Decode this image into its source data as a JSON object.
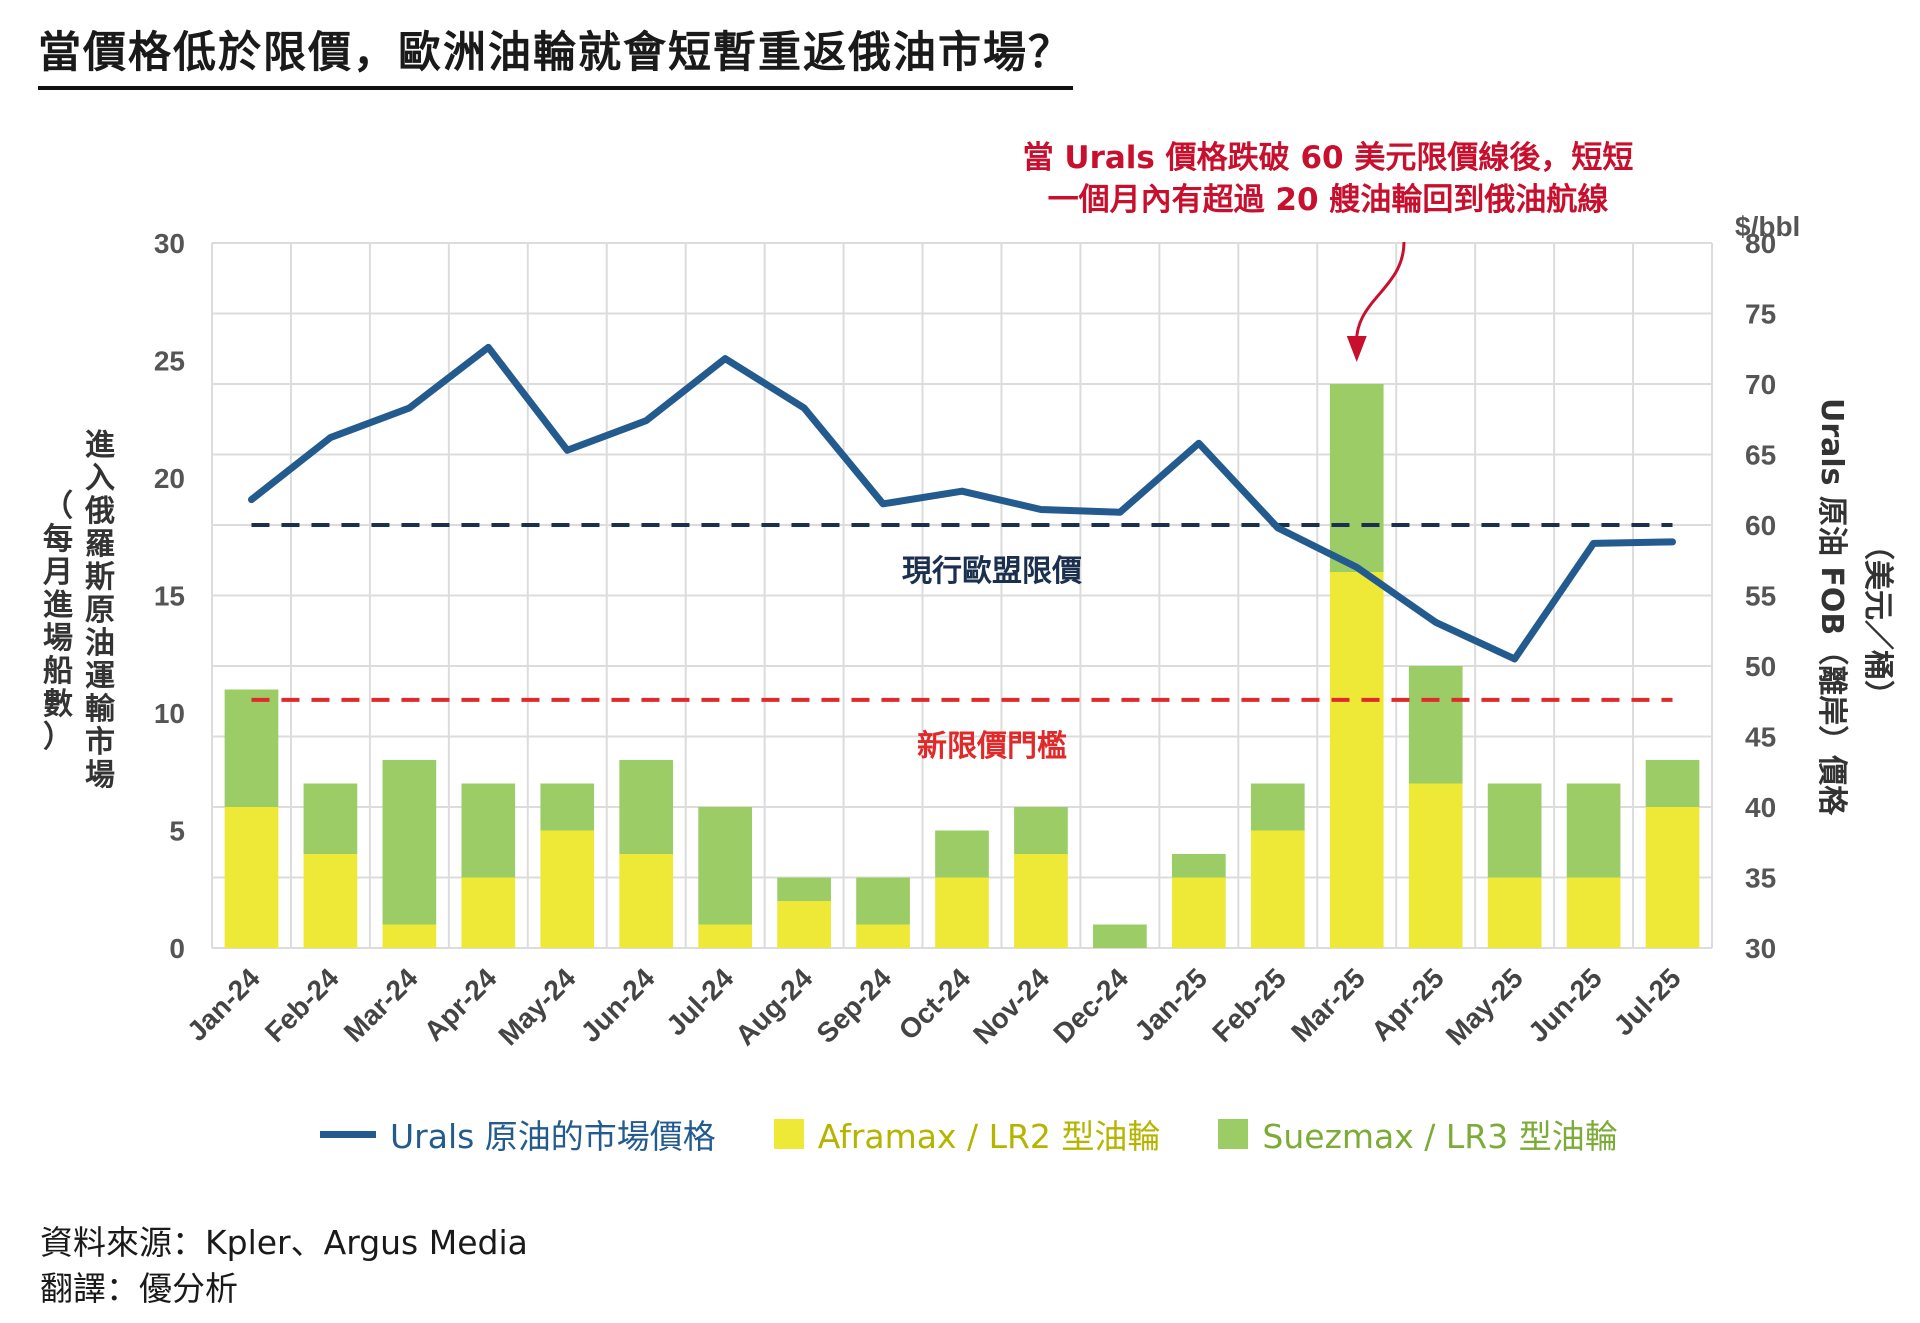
{
  "title": "當價格低於限價，歐洲油輪就會短暫重返俄油市場？",
  "chart_data": {
    "type": "bar",
    "stacked": true,
    "categories": [
      "Jan-24",
      "Feb-24",
      "Mar-24",
      "Apr-24",
      "May-24",
      "Jun-24",
      "Jul-24",
      "Aug-24",
      "Sep-24",
      "Oct-24",
      "Nov-24",
      "Dec-24",
      "Jan-25",
      "Feb-25",
      "Mar-25",
      "Apr-25",
      "May-25",
      "Jun-25",
      "Jul-25"
    ],
    "series": [
      {
        "name": "Aframax / LR2 型油輪",
        "type": "bar",
        "axis": "left",
        "color": "#eee836",
        "values": [
          6,
          4,
          1,
          3,
          5,
          4,
          1,
          2,
          1,
          3,
          4,
          0,
          3,
          5,
          16,
          7,
          3,
          3,
          6
        ]
      },
      {
        "name": "Suezmax / LR3 型油輪",
        "type": "bar",
        "axis": "left",
        "color": "#9ccc65",
        "values": [
          5,
          3,
          7,
          4,
          2,
          4,
          5,
          1,
          2,
          2,
          2,
          1,
          1,
          2,
          8,
          5,
          4,
          4,
          2
        ]
      },
      {
        "name": "Urals 原油的市場價格",
        "type": "line",
        "axis": "right",
        "color": "#245b8f",
        "values": [
          61.8,
          66.2,
          68.3,
          72.6,
          65.3,
          67.4,
          71.8,
          68.3,
          61.5,
          62.4,
          61.1,
          60.9,
          65.8,
          59.8,
          57.0,
          53.1,
          50.5,
          58.7,
          58.8
        ]
      }
    ],
    "y_left": {
      "label": "進入俄羅斯原油運輸市場（每月進場船數）",
      "ylim": [
        0,
        30
      ],
      "ticks": [
        "0",
        "5",
        "10",
        "15",
        "20",
        "25",
        "30"
      ]
    },
    "y_right": {
      "label": "Urals 原油 FOB（離岸）價格（美元／桶）",
      "unit": "$/bbl",
      "ylim": [
        30,
        80
      ],
      "ticks": [
        "30",
        "35",
        "40",
        "45",
        "50",
        "55",
        "60",
        "65",
        "70",
        "75",
        "80"
      ]
    },
    "reference_lines": [
      {
        "label": "現行歐盟限價",
        "value": 60,
        "axis": "right",
        "color": "#1b2f4f"
      },
      {
        "label": "新限價門檻",
        "value": 47.6,
        "axis": "right",
        "color": "#e02a2a"
      }
    ],
    "annotation": {
      "lines": [
        "當 Urals 價格跌破 60 美元限價線後，短短",
        "一個月內有超過 20 艘油輪回到俄油航線"
      ],
      "target": "Mar-25",
      "color": "#c8102e"
    },
    "grid": true,
    "legend_position": "bottom"
  },
  "legend": {
    "line_label": "Urals 原油的市場價格",
    "afra_label": "Aframax / LR2 型油輪",
    "suez_label": "Suezmax / LR3 型油輪",
    "line_color": "#245b8f",
    "afra_color": "#eee836",
    "suez_color": "#9ccc65",
    "afra_text_color": "#b5b500",
    "suez_text_color": "#7cab37"
  },
  "source": {
    "line1": "資料來源：Kpler、Argus Media",
    "line2": "翻譯：優分析"
  }
}
